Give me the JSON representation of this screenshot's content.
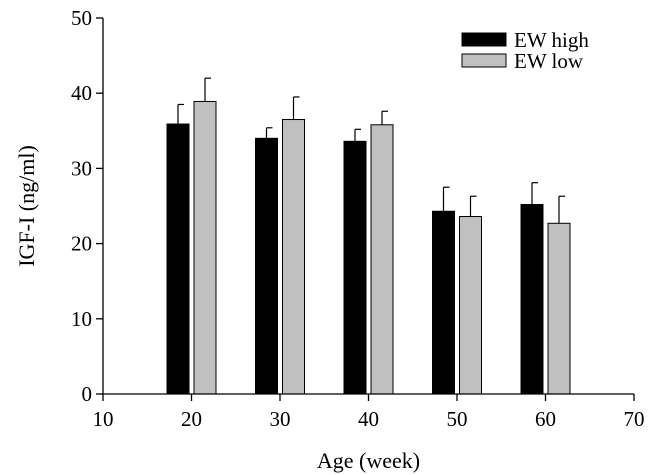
{
  "chart_data": {
    "type": "bar",
    "categories": [
      "20",
      "30",
      "40",
      "50",
      "60"
    ],
    "category_x": [
      20,
      30,
      40,
      50,
      60
    ],
    "series": [
      {
        "name": "EW high",
        "values": [
          35.9,
          34.0,
          33.6,
          24.3,
          25.2
        ],
        "errors": [
          2.6,
          1.4,
          1.6,
          3.2,
          2.9
        ],
        "color": "#000000"
      },
      {
        "name": "EW low",
        "values": [
          38.9,
          36.5,
          35.8,
          23.6,
          22.7
        ],
        "errors": [
          3.1,
          3.0,
          1.8,
          2.7,
          3.6
        ],
        "color": "#c0c0c0"
      }
    ],
    "xlabel": "Age (week)",
    "ylabel": "IGF-I (ng/ml)",
    "xlim": [
      10,
      70
    ],
    "ylim": [
      0,
      50
    ],
    "xticks": [
      10,
      20,
      30,
      40,
      50,
      60,
      70
    ],
    "yticks": [
      0,
      10,
      20,
      30,
      40,
      50
    ],
    "grid": false,
    "legend_position": "top-right"
  }
}
